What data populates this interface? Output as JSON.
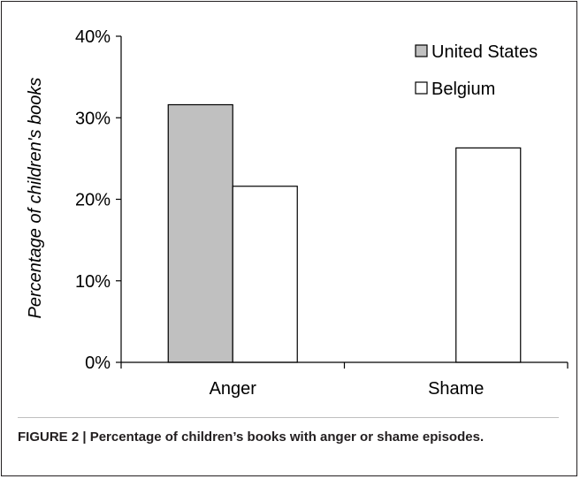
{
  "chart_data": {
    "type": "bar",
    "categories": [
      "Anger",
      "Shame"
    ],
    "series": [
      {
        "name": "United States",
        "values": [
          31.6,
          0
        ],
        "color": "#c0c0c0"
      },
      {
        "name": "Belgium",
        "values": [
          21.6,
          26.3
        ],
        "color": "#ffffff"
      }
    ],
    "ylabel": "Percentage of children's books",
    "xlabel": "",
    "ylim": [
      0,
      40
    ],
    "yticks": [
      "0%",
      "10%",
      "20%",
      "30%",
      "40%"
    ],
    "grid": false,
    "legend_position": "top-right"
  },
  "caption": "FIGURE 2 | Percentage of children’s books with anger or shame episodes."
}
